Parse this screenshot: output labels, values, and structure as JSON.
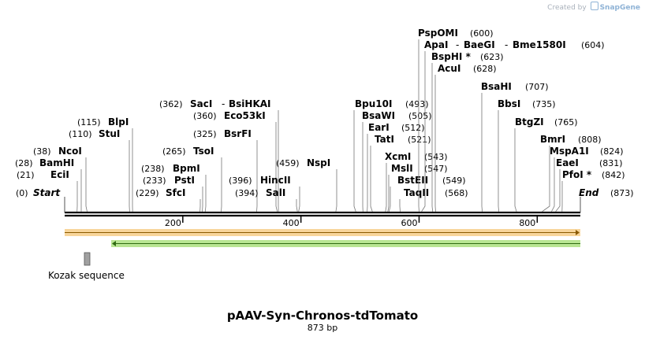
{
  "credit": {
    "prefix": "Created by",
    "brand": "SnapGene"
  },
  "map": {
    "length": 873,
    "ticks": [
      200,
      400,
      600,
      800
    ],
    "start_label": "Start",
    "start_pos": "(0)",
    "end_label": "End",
    "end_pos": "(873)",
    "sites": [
      {
        "name": "EciI",
        "pos": 21
      },
      {
        "name": "BamHI",
        "pos": 28
      },
      {
        "name": "NcoI",
        "pos": 38
      },
      {
        "name": "StuI",
        "pos": 110
      },
      {
        "name": "BlpI",
        "pos": 115
      },
      {
        "name": "SfcI",
        "pos": 229
      },
      {
        "name": "PstI",
        "pos": 233
      },
      {
        "name": "BpmI",
        "pos": 238
      },
      {
        "name": "TsoI",
        "pos": 265
      },
      {
        "name": "BsrFI",
        "pos": 325
      },
      {
        "name": "Eco53kI",
        "pos": 360
      },
      {
        "name": "SacI",
        "pos": 362
      },
      {
        "name": "BsiHKAI",
        "pos": 362
      },
      {
        "name": "SalI",
        "pos": 394
      },
      {
        "name": "HincII",
        "pos": 396
      },
      {
        "name": "NspI",
        "pos": 459
      },
      {
        "name": "Bpu10I",
        "pos": 493
      },
      {
        "name": "BsaWI",
        "pos": 505
      },
      {
        "name": "EarI",
        "pos": 512
      },
      {
        "name": "TatI",
        "pos": 521
      },
      {
        "name": "XcmI",
        "pos": 543
      },
      {
        "name": "MslI",
        "pos": 547
      },
      {
        "name": "BstEII",
        "pos": 549
      },
      {
        "name": "TaqII",
        "pos": 568
      },
      {
        "name": "PspOMI",
        "pos": 600
      },
      {
        "name": "ApaI",
        "pos": 604
      },
      {
        "name": "BaeGI",
        "pos": 604
      },
      {
        "name": "Bme1580I",
        "pos": 604
      },
      {
        "name": "BspHI *",
        "pos": 623
      },
      {
        "name": "AcuI",
        "pos": 628
      },
      {
        "name": "BsaHI",
        "pos": 707
      },
      {
        "name": "BbsI",
        "pos": 735
      },
      {
        "name": "BtgZI",
        "pos": 765
      },
      {
        "name": "BmrI",
        "pos": 808
      },
      {
        "name": "MspA1I",
        "pos": 824
      },
      {
        "name": "EaeI",
        "pos": 831
      },
      {
        "name": "PfoI *",
        "pos": 842
      }
    ],
    "features": [
      {
        "name": "orf-forward",
        "start": 0,
        "end": 873,
        "direction": "forward",
        "color": "#f2b347"
      },
      {
        "name": "orf-reverse",
        "start": 80,
        "end": 873,
        "direction": "reverse",
        "color": "#7fd13b"
      },
      {
        "name": "Kozak sequence",
        "start": 34,
        "end": 43,
        "direction": "none",
        "color": "#a0a0a0"
      }
    ]
  },
  "feature_label": "Kozak sequence",
  "title": "pAAV-Syn-Chronos-tdTomato",
  "subtitle": "873 bp"
}
